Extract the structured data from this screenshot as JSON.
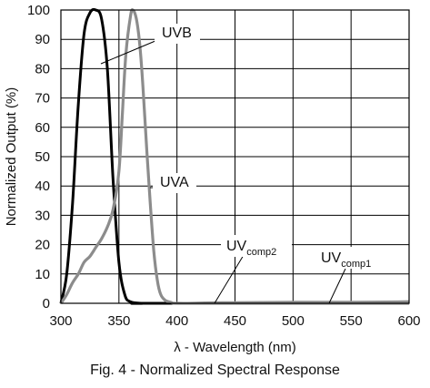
{
  "chart_data": {
    "type": "line",
    "xlabel": "λ - Wavelength (nm)",
    "ylabel": "Normalized Output (%)",
    "xlim": [
      300,
      600
    ],
    "ylim": [
      0,
      100
    ],
    "xticks": [
      300,
      350,
      400,
      450,
      500,
      550,
      600
    ],
    "yticks": [
      0,
      10,
      20,
      30,
      40,
      50,
      60,
      70,
      80,
      90,
      100
    ],
    "grid": true,
    "legend": "none",
    "series": [
      {
        "name": "UVB",
        "color": "#000000",
        "x": [
          300,
          305,
          310,
          315,
          320,
          325,
          330,
          335,
          340,
          345,
          350,
          355,
          360,
          370,
          380,
          600
        ],
        "y": [
          0,
          10,
          34,
          68,
          92,
          99,
          100,
          97,
          80,
          42,
          14,
          3,
          0.5,
          0,
          0,
          0
        ]
      },
      {
        "name": "UVA",
        "color": "#8c8c8c",
        "x": [
          300,
          305,
          310,
          315,
          320,
          325,
          330,
          335,
          340,
          345,
          350,
          353,
          356,
          360,
          362,
          365,
          368,
          371,
          374,
          377,
          380,
          383,
          386,
          390,
          395,
          400,
          430,
          480,
          600
        ],
        "y": [
          0,
          3,
          7,
          10,
          14,
          16,
          19,
          22,
          26,
          32,
          45,
          65,
          85,
          98,
          100,
          97,
          88,
          72,
          52,
          34,
          18,
          8,
          3,
          1,
          0.3,
          0,
          0,
          0,
          0
        ]
      },
      {
        "name": "UVcomp2",
        "color": "#8c8c8c",
        "x": [
          400,
          430,
          460,
          500,
          540,
          580,
          600
        ],
        "y": [
          0,
          0.3,
          0.4,
          0.5,
          0.5,
          0.6,
          0.7
        ]
      }
    ],
    "annotations": [
      {
        "main": "UVB",
        "sub": ""
      },
      {
        "main": "UVA",
        "sub": ""
      },
      {
        "main": "UV",
        "sub": "comp2"
      },
      {
        "main": "UV",
        "sub": "comp1"
      }
    ],
    "caption": "Fig. 4 - Normalized Spectral Response"
  }
}
